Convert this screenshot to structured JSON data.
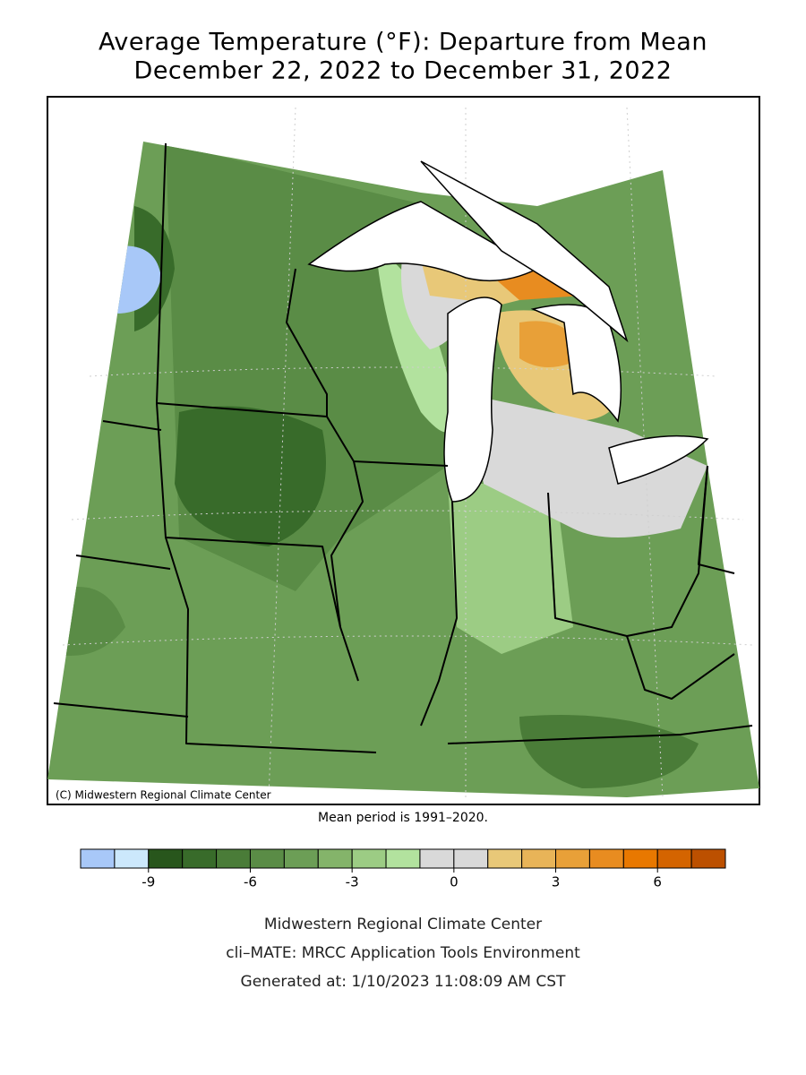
{
  "title": "Average Temperature (°F): Departure from Mean",
  "subtitle": "December 22, 2022 to December 31, 2022",
  "copyright": "(C) Midwestern Regional Climate Center",
  "note": "Mean period is 1991–2020.",
  "legend": {
    "range": [
      -11,
      8
    ],
    "colors": [
      "#a8c8f8",
      "#cce8fc",
      "#28561c",
      "#386b2a",
      "#4a7c38",
      "#5a8c46",
      "#6c9e56",
      "#84b46a",
      "#9ccc84",
      "#b2e29e",
      "#d9d9d9",
      "#d9d9d9",
      "#e8c878",
      "#e8b458",
      "#e8a038",
      "#e88c20",
      "#e87800",
      "#d46400",
      "#bc5000"
    ],
    "ticks": [
      -9,
      -6,
      -3,
      0,
      3,
      6
    ]
  },
  "footer": [
    "Midwestern Regional Climate Center",
    "cli–MATE: MRCC Application Tools Environment",
    "Generated at: 1/10/2023 11:08:09 AM CST"
  ]
}
